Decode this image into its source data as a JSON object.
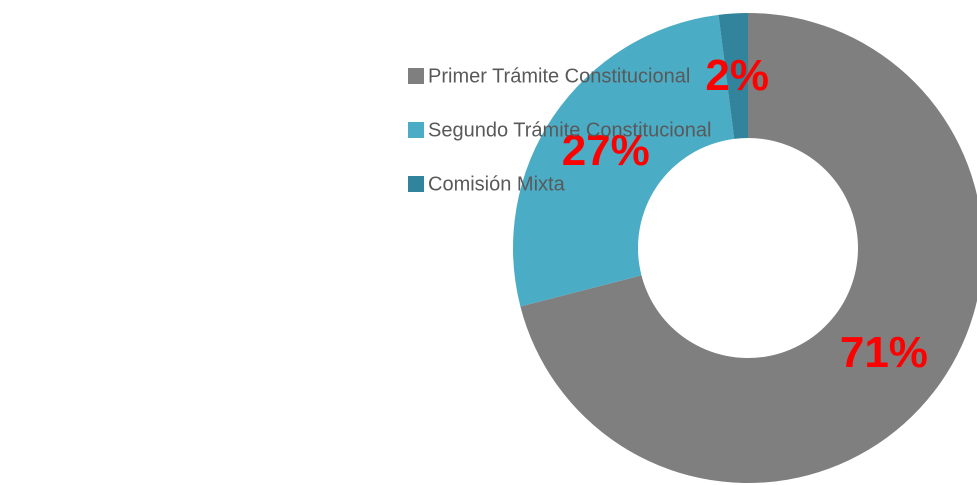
{
  "chart_data": {
    "type": "donut",
    "categories": [
      "Primer Trámite Constitucional",
      "Segundo Trámite Constitucional",
      "Comisión Mixta"
    ],
    "values": [
      71,
      27,
      2
    ],
    "value_labels": [
      "71%",
      "27%",
      "2%"
    ],
    "colors": [
      "#7f7f7f",
      "#4bacc6",
      "#31849b"
    ],
    "legend": "left"
  }
}
